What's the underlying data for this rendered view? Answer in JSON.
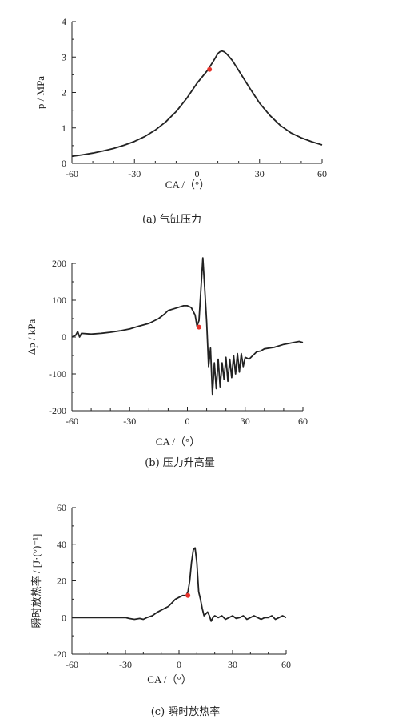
{
  "chart_data": [
    {
      "type": "line",
      "caption": "(a)  气缸压力",
      "xlabel": "CA /（°）",
      "ylabel": "p / MPa",
      "xlim": [
        -60,
        60
      ],
      "ylim": [
        0,
        4
      ],
      "xticks": [
        "-60",
        "-30",
        "0",
        "30",
        "60"
      ],
      "yticks": [
        "0",
        "1",
        "2",
        "3",
        "4"
      ],
      "line_color": "#222222",
      "marker_color": "#e8322a",
      "marker": {
        "x": 6,
        "y": 2.65
      },
      "x": [
        -60,
        -55,
        -50,
        -45,
        -40,
        -35,
        -30,
        -25,
        -20,
        -15,
        -10,
        -5,
        0,
        5,
        8,
        10,
        11,
        12,
        13,
        14,
        15,
        17,
        20,
        25,
        30,
        35,
        40,
        45,
        50,
        55,
        60
      ],
      "y": [
        0.2,
        0.24,
        0.29,
        0.35,
        0.42,
        0.51,
        0.62,
        0.76,
        0.94,
        1.17,
        1.46,
        1.83,
        2.26,
        2.62,
        2.9,
        3.1,
        3.15,
        3.17,
        3.15,
        3.1,
        3.04,
        2.9,
        2.62,
        2.15,
        1.7,
        1.35,
        1.07,
        0.86,
        0.72,
        0.61,
        0.52
      ]
    },
    {
      "type": "line",
      "caption": "(b)  压力升高量",
      "xlabel": "CA /（°）",
      "ylabel": "Δp / kPa",
      "xlim": [
        -60,
        60
      ],
      "ylim": [
        -200,
        200
      ],
      "xticks": [
        "-60",
        "-30",
        "0",
        "30",
        "60"
      ],
      "yticks": [
        "-200",
        "-100",
        "0",
        "100",
        "200"
      ],
      "line_color": "#222222",
      "marker_color": "#e8322a",
      "marker": {
        "x": 6,
        "y": 27
      },
      "x": [
        -60,
        -58,
        -57,
        -56,
        -55,
        -50,
        -45,
        -40,
        -35,
        -30,
        -25,
        -20,
        -15,
        -12,
        -10,
        -5,
        -2,
        0,
        2,
        4,
        5,
        6,
        7,
        8,
        9,
        10,
        11,
        12,
        13,
        14,
        15,
        16,
        17,
        18,
        19,
        20,
        21,
        22,
        23,
        24,
        25,
        26,
        27,
        28,
        29,
        30,
        32,
        34,
        36,
        38,
        40,
        45,
        50,
        55,
        58,
        60
      ],
      "y": [
        0,
        5,
        15,
        0,
        10,
        8,
        10,
        13,
        17,
        22,
        30,
        37,
        50,
        62,
        72,
        80,
        85,
        85,
        80,
        60,
        30,
        45,
        130,
        215,
        130,
        40,
        -80,
        -30,
        -155,
        -70,
        -140,
        -60,
        -135,
        -70,
        -115,
        -55,
        -120,
        -60,
        -110,
        -50,
        -100,
        -45,
        -95,
        -45,
        -80,
        -55,
        -60,
        -50,
        -40,
        -38,
        -32,
        -28,
        -20,
        -15,
        -12,
        -15
      ]
    },
    {
      "type": "line",
      "caption": "(c)  瞬时放热率",
      "xlabel": "CA /（°）",
      "ylabel": "瞬时放热率 / [J·(°)⁻¹]",
      "xlim": [
        -60,
        60
      ],
      "ylim": [
        -20,
        60
      ],
      "xticks": [
        "-60",
        "-30",
        "0",
        "30",
        "60"
      ],
      "yticks": [
        "-20",
        "0",
        "20",
        "40",
        "60"
      ],
      "line_color": "#222222",
      "marker_color": "#e8322a",
      "marker": {
        "x": 5,
        "y": 12
      },
      "x": [
        -60,
        -50,
        -40,
        -30,
        -28,
        -25,
        -22,
        -20,
        -18,
        -15,
        -12,
        -10,
        -8,
        -6,
        -4,
        -2,
        0,
        2,
        4,
        5,
        6,
        7,
        8,
        9,
        10,
        11,
        12,
        13,
        14,
        15,
        16,
        17,
        18,
        19,
        20,
        22,
        24,
        26,
        28,
        30,
        32,
        34,
        36,
        38,
        40,
        42,
        44,
        46,
        48,
        50,
        52,
        54,
        56,
        58,
        60
      ],
      "y": [
        0,
        0,
        0,
        0,
        -0.5,
        -1,
        -0.5,
        -1,
        0,
        1,
        3,
        4,
        5,
        6,
        8,
        10,
        11,
        12,
        12,
        14,
        20,
        30,
        37,
        38,
        30,
        14,
        10,
        5,
        1,
        2,
        3,
        1,
        -2,
        0,
        1,
        0,
        1,
        -1,
        0,
        1,
        -0.5,
        0,
        1,
        -1,
        0,
        1,
        0,
        -1,
        0,
        0,
        1,
        -1,
        0,
        1,
        0
      ]
    }
  ]
}
